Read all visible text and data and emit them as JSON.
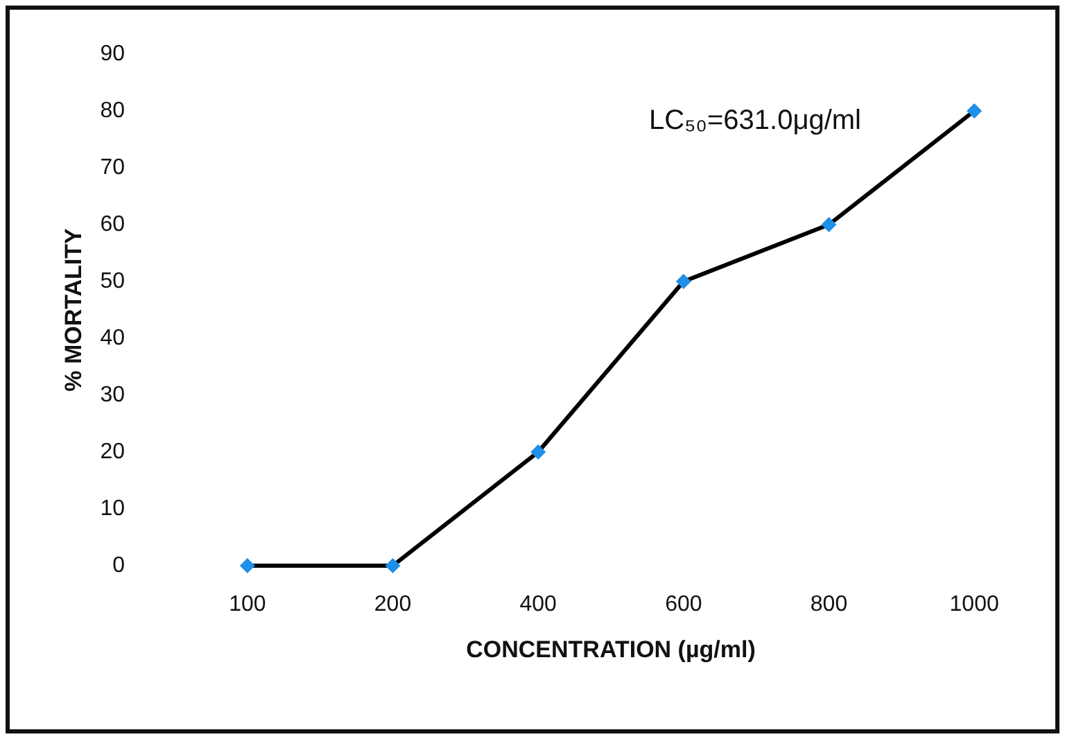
{
  "chart_data": {
    "type": "line",
    "xlabel": "CONCENTRATION (µg/ml)",
    "ylabel": "% MORTALITY",
    "annotations": [
      "LC₅₀=631.0μg/ml"
    ],
    "categories": [
      "100",
      "200",
      "400",
      "600",
      "800",
      "1000"
    ],
    "series": [
      {
        "color": "#000000",
        "colors": [
          "#1e90e8",
          "#1e90e8",
          "#1e90e8",
          "#1e90e8",
          "#1e90e8",
          "#1e90e8"
        ],
        "values": [
          0,
          0,
          20,
          50,
          60,
          80
        ]
      }
    ],
    "ylim": [
      0,
      90
    ],
    "yticks": [
      0,
      10,
      20,
      30,
      40,
      50,
      60,
      70,
      80,
      90
    ],
    "grid": false,
    "marker": "diamond",
    "line_style": "solid"
  }
}
